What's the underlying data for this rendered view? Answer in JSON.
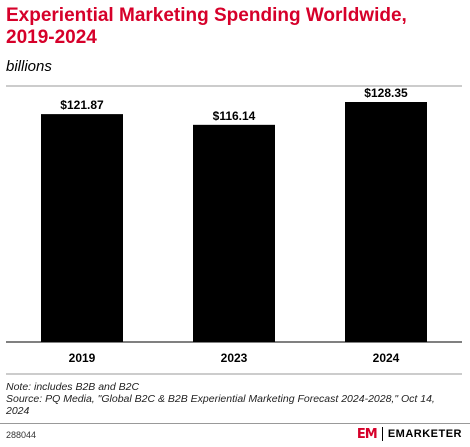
{
  "header": {
    "title": "Experiential Marketing Spending Worldwide, 2019-2024",
    "subtitle": "billions"
  },
  "chart_data": {
    "type": "bar",
    "categories": [
      "2019",
      "2023",
      "2024"
    ],
    "values": [
      121.87,
      116.14,
      128.35
    ],
    "value_labels": [
      "$121.87",
      "$116.14",
      "$128.35"
    ],
    "bar_color": "#000000",
    "grid": false,
    "legend": "none"
  },
  "footer": {
    "note": "Note: includes B2B and B2C",
    "source": "Source: PQ Media, \"Global B2C & B2B Experiential Marketing Forecast 2024-2028,\" Oct 14, 2024",
    "chart_id": "288044",
    "brand_logo": "EM",
    "brand_name": "EMARKETER",
    "accent_color": "#d6002a"
  }
}
